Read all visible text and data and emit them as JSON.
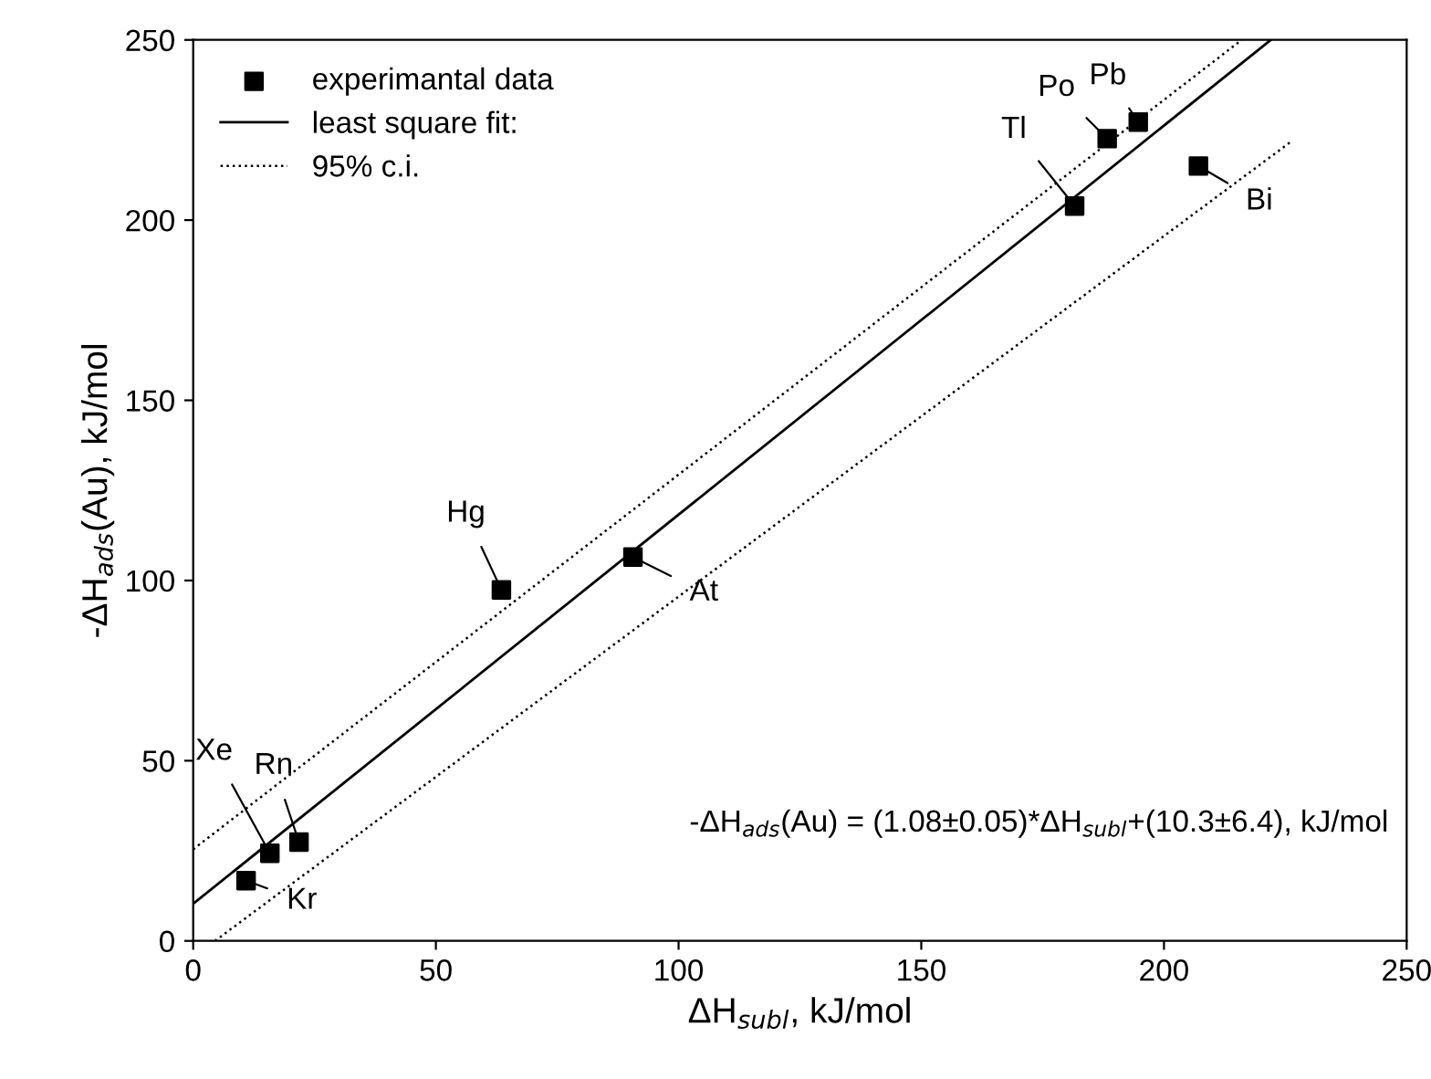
{
  "chart_data": {
    "type": "scatter",
    "xlabel": "ΔH$_{subl}$, kJ/mol",
    "ylabel": "-ΔH$_{ads}$(Au), kJ/mol",
    "xlim": [
      0,
      250
    ],
    "ylim": [
      0,
      250
    ],
    "xticks": [
      0,
      50,
      100,
      150,
      200,
      250
    ],
    "yticks": [
      0,
      50,
      100,
      150,
      200,
      250
    ],
    "grid": false,
    "legend": "top left",
    "series": [
      {
        "name": "experimantal data",
        "marker": "square",
        "color": "#000000",
        "x": [
          10.9,
          15.8,
          21.8,
          63.5,
          90.6,
          181.6,
          188.3,
          194.7,
          207.1
        ],
        "values": [
          16.7,
          24.3,
          27.4,
          97.4,
          106.5,
          203.9,
          222.6,
          227.2,
          215
        ]
      },
      {
        "name": "least square fit:",
        "type": "line",
        "line_style": "solid",
        "color": "#000000",
        "x": [
          0,
          222
        ],
        "values": [
          10.3,
          250
        ]
      },
      {
        "name": "95% c.i.",
        "type": "line",
        "line_style": "dotted",
        "color": "#000000",
        "x": [
          0,
          216
        ],
        "values": [
          25.4,
          250
        ]
      },
      {
        "type": "line",
        "line_style": "dotted",
        "color": "#000000",
        "x": [
          4.5,
          226
        ],
        "values": [
          0,
          221.6
        ]
      }
    ],
    "annotations": [
      {
        "text": "Kr",
        "x": 10.9,
        "y": 16.7
      },
      {
        "text": "Xe",
        "x": 15.8,
        "y": 24.3
      },
      {
        "text": "Rn",
        "x": 21.8,
        "y": 27.4
      },
      {
        "text": "Hg",
        "x": 63.5,
        "y": 97.4
      },
      {
        "text": "At",
        "x": 90.6,
        "y": 106.5
      },
      {
        "text": "Tl",
        "x": 181.6,
        "y": 203.9
      },
      {
        "text": "Po",
        "x": 188.3,
        "y": 222.6
      },
      {
        "text": "Pb",
        "x": 194.7,
        "y": 227.2
      },
      {
        "text": "Bi",
        "x": 207.1,
        "y": 215
      },
      "-ΔH$_{ads}$(Au) = (1.08±0.05)*ΔH$_{subl}$+(10.3±6.4), kJ/mol"
    ]
  }
}
